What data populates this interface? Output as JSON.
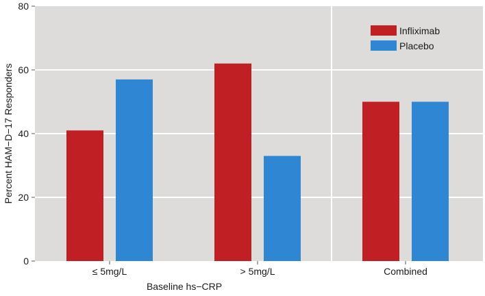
{
  "chart_data": {
    "type": "bar",
    "categories": [
      "≤ 5mg/L",
      "> 5mg/L",
      "Combined"
    ],
    "series": [
      {
        "name": "Infliximab",
        "values": [
          41,
          62,
          50
        ],
        "color": "#c02024"
      },
      {
        "name": "Placebo",
        "values": [
          57,
          33,
          50
        ],
        "color": "#2f86d2"
      }
    ],
    "xlabel": "Baseline hs−CRP",
    "ylabel": "Percent HAM−D−17 Responders",
    "ylim": [
      0,
      80
    ],
    "yticks": [
      0,
      20,
      40,
      60,
      80
    ],
    "grid": true,
    "panel_background": "#dedbdb",
    "legend_position": "top-right"
  }
}
